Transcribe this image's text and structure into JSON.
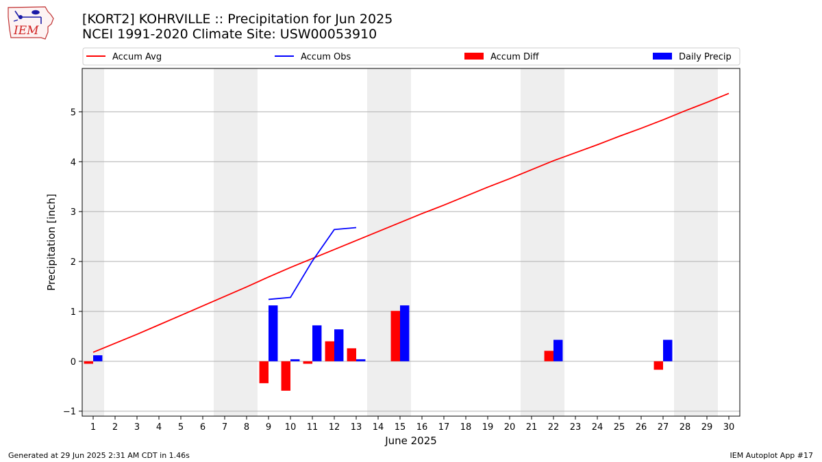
{
  "header": {
    "title_line1": "[KORT2] KOHRVILLE :: Precipitation for Jun 2025",
    "title_line2": "NCEI 1991-2020 Climate Site: USW00053910",
    "logo_text": "IEM"
  },
  "footer": {
    "left": "Generated at 29 Jun 2025 2:31 AM CDT in 1.46s",
    "right": "IEM Autoplot App #17"
  },
  "colors": {
    "avg": "#ff0000",
    "obs": "#0000ff",
    "diff": "#ff0000",
    "daily": "#0000ff",
    "weekend_band": "#eeeeee",
    "grid": "#b0b0b0"
  },
  "chart_data": {
    "type": "bar",
    "xlabel": "June 2025",
    "ylabel": "Precipitation [inch]",
    "ylim": [
      -1.1,
      5.87
    ],
    "xlim": [
      0.5,
      30.5
    ],
    "grid": "horizontal",
    "legend_placement": "top",
    "x_ticks": [
      1,
      2,
      3,
      4,
      5,
      6,
      7,
      8,
      9,
      10,
      11,
      12,
      13,
      14,
      15,
      16,
      17,
      18,
      19,
      20,
      21,
      22,
      23,
      24,
      25,
      26,
      27,
      28,
      29,
      30
    ],
    "y_ticks": [
      -1,
      0,
      1,
      2,
      3,
      4,
      5
    ],
    "weekend_days": [
      1,
      7,
      8,
      14,
      15,
      21,
      22,
      28,
      29
    ],
    "legend": [
      "Accum Avg",
      "Accum Obs",
      "Accum Diff",
      "Daily Precip"
    ],
    "series": [
      {
        "name": "Accum Avg",
        "kind": "line",
        "x": [
          1,
          2,
          3,
          4,
          5,
          6,
          7,
          8,
          9,
          10,
          11,
          12,
          13,
          14,
          15,
          16,
          17,
          18,
          19,
          20,
          21,
          22,
          23,
          24,
          25,
          26,
          27,
          28,
          29,
          30
        ],
        "values": [
          0.18,
          0.36,
          0.54,
          0.73,
          0.92,
          1.11,
          1.3,
          1.49,
          1.69,
          1.88,
          2.06,
          2.24,
          2.42,
          2.6,
          2.78,
          2.96,
          3.13,
          3.31,
          3.49,
          3.66,
          3.84,
          4.02,
          4.18,
          4.34,
          4.51,
          4.67,
          4.84,
          5.02,
          5.19,
          5.37
        ]
      },
      {
        "name": "Accum Obs",
        "kind": "line",
        "x": [
          9,
          10,
          11,
          12,
          13
        ],
        "values": [
          1.24,
          1.28,
          2.01,
          2.64,
          2.68
        ]
      },
      {
        "name": "Accum Diff",
        "kind": "bar",
        "x": [
          1,
          9,
          10,
          11,
          12,
          13,
          15,
          22,
          27
        ],
        "values": [
          -0.05,
          -0.44,
          -0.59,
          -0.05,
          0.4,
          0.26,
          1.01,
          0.21,
          -0.17
        ]
      },
      {
        "name": "Daily Precip",
        "kind": "bar",
        "x": [
          1,
          9,
          10,
          11,
          12,
          13,
          15,
          22,
          27
        ],
        "values": [
          0.12,
          1.12,
          0.04,
          0.72,
          0.64,
          0.04,
          1.12,
          0.43,
          0.43
        ]
      }
    ]
  }
}
